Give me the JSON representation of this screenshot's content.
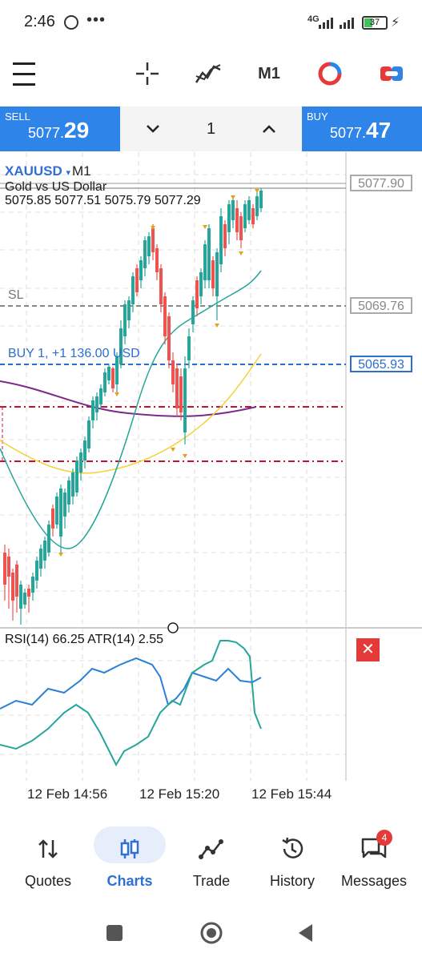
{
  "status_bar": {
    "time": "2:46",
    "more": "•••",
    "network": "4G",
    "battery": "37"
  },
  "toolbar": {
    "timeframe": "M1"
  },
  "trade": {
    "sell_label": "SELL",
    "sell_price_prefix": "5077.",
    "sell_price_big": "29",
    "buy_label": "BUY",
    "buy_price_prefix": "5077.",
    "buy_price_big": "47",
    "volume": "1"
  },
  "chart": {
    "symbol": "XAUUSD",
    "symbol_arrow": "▾",
    "timeframe": "M1",
    "description": "Gold vs US Dollar",
    "ohlc": "5075.85 5077.51 5075.79 5077.29",
    "sl_label": "SL",
    "position_label": "BUY 1,   +1 136.00 USD",
    "current_price": "5077.90",
    "sl_price": "5069.76",
    "entry_price": "5065.93",
    "indicator_label": "RSI(14) 66.25 ATR(14) 2.55",
    "close_symbol": "✕",
    "time_labels": [
      "12 Feb 14:56",
      "12 Feb 15:20",
      "12 Feb 15:44"
    ]
  },
  "nav": {
    "items": [
      {
        "label": "Quotes"
      },
      {
        "label": "Charts"
      },
      {
        "label": "Trade"
      },
      {
        "label": "History"
      },
      {
        "label": "Messages"
      }
    ],
    "messages_badge": "4"
  },
  "colors": {
    "accent": "#2f84ea",
    "bull": "#26a69a",
    "bear": "#ef5350",
    "danger": "#e53a3a"
  },
  "chart_data": {
    "type": "candlestick",
    "symbol": "XAUUSD",
    "timeframe": "M1",
    "price_levels": {
      "current": 5077.9,
      "stop_loss": 5069.76,
      "entry": 5065.93
    },
    "last_bar": {
      "open": 5075.85,
      "high": 5077.51,
      "low": 5075.79,
      "close": 5077.29
    },
    "indicators": {
      "RSI(14)": 66.25,
      "ATR(14)": 2.55
    },
    "x_tick_labels": [
      "12 Feb 14:56",
      "12 Feb 15:20",
      "12 Feb 15:44"
    ]
  }
}
